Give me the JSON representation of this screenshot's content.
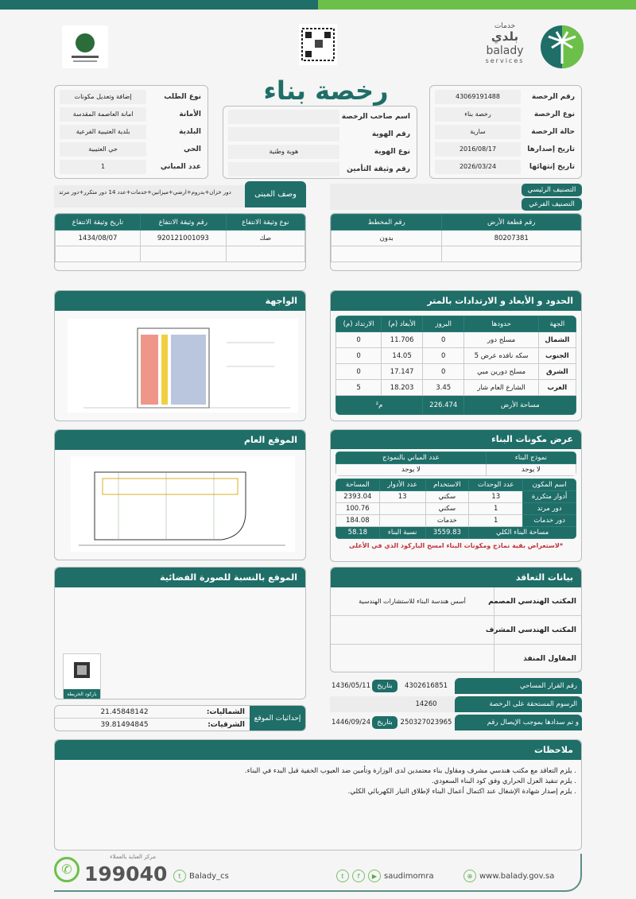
{
  "title": "رخصة بناء",
  "brand": {
    "arabic_top": "خدمات",
    "arabic": "بلدي",
    "latin": "balady",
    "services": "services",
    "colors": {
      "teal": "#1f6e68",
      "green": "#6cc04a"
    }
  },
  "license": [
    {
      "k": "رقم الرخصة",
      "v": "43069191488"
    },
    {
      "k": "نوع الرخصة",
      "v": "رخصة بناء"
    },
    {
      "k": "حالة الرخصة",
      "v": "سارية"
    },
    {
      "k": "تاريخ إصدارها",
      "v": "2016/08/17"
    },
    {
      "k": "تاريخ إنتهائها",
      "v": "2026/03/24"
    }
  ],
  "owner": [
    {
      "k": "اسم صاحب الرخصة",
      "v": ""
    },
    {
      "k": "رقم الهوية",
      "v": ""
    },
    {
      "k": "نوع الهوية",
      "v": "هوية وطنية"
    },
    {
      "k": "رقم وثيقة التأمين",
      "v": ""
    }
  ],
  "request": [
    {
      "k": "نوع الطلب",
      "v": "إضافة وتعديل مكونات"
    },
    {
      "k": "الأمانة",
      "v": "امانة العاصمة المقدسة"
    },
    {
      "k": "البلدية",
      "v": "بلدية العتيبية الفرعية"
    },
    {
      "k": "الحي",
      "v": "حي العتيبية"
    },
    {
      "k": "عدد المباني",
      "v": "1"
    }
  ],
  "classification": {
    "main": "التصنيف الرئيسي",
    "sub": "التصنيف الفرعي"
  },
  "building_desc": {
    "label": "وصف المبنى",
    "value": "دور خزان+بدروم+ارضي+ميزانين+خدمات+عدد 14 دور متكرر+دور مرتد"
  },
  "ownership": {
    "headers": [
      "نوع وثيقة الانتفاع",
      "رقم وثيقة الانتفاع",
      "تاريخ وثيقة الانتفاع"
    ],
    "rows": [
      [
        "صك",
        "920121001093",
        "1434/08/07"
      ],
      [
        "",
        "",
        ""
      ]
    ]
  },
  "parcel": {
    "headers": [
      "رقم قطعة الأرض",
      "رقم المخطط"
    ],
    "rows": [
      [
        "80207381",
        "بدون"
      ],
      [
        "",
        ""
      ]
    ]
  },
  "facade": {
    "title": "الواجهة"
  },
  "site_plan": {
    "title": "الموقع العام"
  },
  "satellite": {
    "title": "الموقع بالنسبة للصورة الفضائية",
    "qr_label": "باركود الخريطة"
  },
  "coords": {
    "label": "إحداثيات الموقع",
    "north_label": "الشماليات:",
    "north": "21.45848142",
    "east_label": "الشرقيات:",
    "east": "39.81494845"
  },
  "dimensions": {
    "title": "الحدود و الأبعاد و الارتدادات بالمتر",
    "headers": [
      "الجهة",
      "حدودها",
      "البروز",
      "الأبعاد (م)",
      "الارتداد (م)"
    ],
    "rows": [
      [
        "الشمال",
        "مسلح دور",
        "0",
        "11.706",
        "0"
      ],
      [
        "الجنوب",
        "سكه نافذه عرض 5",
        "0",
        "14.05",
        "0"
      ],
      [
        "الشرق",
        "مسلح دورين  مبي",
        "0",
        "17.147",
        "0"
      ],
      [
        "الغرب",
        "الشارع العام شار",
        "3.45",
        "18.203",
        "5"
      ]
    ],
    "area_label": "مساحة الأرض",
    "area": "226.474",
    "unit": "م²"
  },
  "components": {
    "title": "عرض مكونات البناء",
    "model_headers": [
      "نموذج البناء",
      "عدد المباني بالنموذج"
    ],
    "model_values": [
      "لا يوجد",
      "لا يوجد"
    ],
    "headers": [
      "اسم المكون",
      "عدد الوحدات",
      "الاستخدام",
      "عدد الأدوار",
      "المساحة"
    ],
    "rows": [
      [
        "أدوار متكررة",
        "13",
        "سكني",
        "13",
        "2393.04"
      ],
      [
        "دور مرتد",
        "1",
        "سكني",
        "",
        "100.76"
      ],
      [
        "دور خدمات",
        "1",
        "خدمات",
        "",
        "184.08"
      ]
    ],
    "total_label": "مساحة البناء الكلي",
    "total": "3559.83",
    "ratio_label": "نسبة البناء",
    "ratio": "58.18",
    "note": "*لاستعراض بقية نماذج ومكونات البناء امسح الباركود الذي في الأعلى"
  },
  "contract": {
    "title": "بيانات التعاقد",
    "rows": [
      {
        "k": "المكتب الهندسي المصمم",
        "v": "أسس هندسة البناء للاستشارات الهندسية"
      },
      {
        "k": "المكتب الهندسي المشرف",
        "v": ""
      },
      {
        "k": "المقاول المنفذ",
        "v": ""
      }
    ]
  },
  "fees": {
    "survey_label": "رقم القرار المساحي",
    "survey_no": "4302616851",
    "date_label": "بتاريخ",
    "survey_date": "1436/05/11",
    "fee_label": "الرسوم المستحقة على الرخصة",
    "fee": "14260",
    "paid_label": "و تم سدادها بموجب الإيصال رقم",
    "receipt": "250327023965",
    "receipt_date": "1446/09/24"
  },
  "notes": {
    "title": "ملاحظات",
    "items": [
      ". يلزم التعاقد مع مكتب هندسي مشرف ومقاول بناء معتمدين لدى الوزارة وتأمين ضد العيوب الخفية قبل البدء في البناء.",
      ". يلزم تنفيذ العزل الحراري وفق كود البناء السعودي.",
      ". يلزم إصدار شهادة الإشغال عند اكتمال أعمال البناء لإطلاق التيار الكهربائي الكلي."
    ]
  },
  "footer": {
    "care_label": "مركز العناية بالعملاء",
    "phone": "199040",
    "twitter": "Balady_cs",
    "social": "saudimomra",
    "web": "www.balady.gov.sa"
  }
}
